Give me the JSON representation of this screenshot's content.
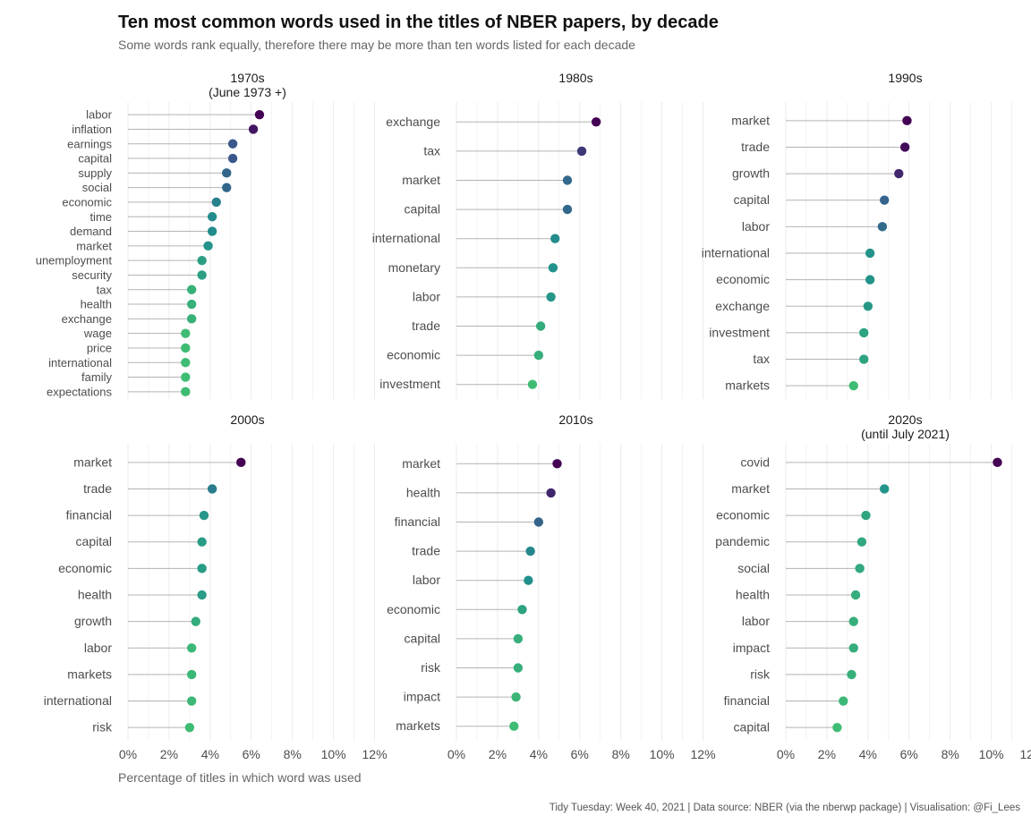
{
  "header": {
    "title": "Ten most common words used in the titles of NBER papers, by decade",
    "subtitle": "Some words rank equally, therefore there may be more than ten words listed for each decade"
  },
  "footer": {
    "xlabel": "Percentage of titles in which word was used",
    "caption": "Tidy Tuesday: Week 40, 2021 | Data source: NBER (via the nberwp package) | Visualisation: @Fi_Lees"
  },
  "colors": {
    "palette_high_to_low": [
      "#440154",
      "#3b528b",
      "#21908c",
      "#3fbc73"
    ],
    "segment": "#b3b3b3",
    "grid": "#ebebeb",
    "text": "#4d4d4d"
  },
  "chart_data": {
    "type": "lollipop",
    "facet_by": "decade",
    "x_axis": {
      "ticks": [
        0,
        2,
        4,
        6,
        8,
        10,
        12
      ],
      "tick_suffix": "%",
      "xlim": [
        0,
        12.5
      ],
      "unit": "percent of titles"
    },
    "grid": true,
    "panels": [
      {
        "decade": "1970s",
        "subtitle": "(June 1973 +)",
        "words": [
          "labor",
          "inflation",
          "earnings",
          "capital",
          "supply",
          "social",
          "economic",
          "time",
          "demand",
          "market",
          "unemployment",
          "security",
          "tax",
          "health",
          "exchange",
          "wage",
          "price",
          "international",
          "family",
          "expectations"
        ],
        "values": [
          6.4,
          6.1,
          5.1,
          5.1,
          4.8,
          4.8,
          4.3,
          4.1,
          4.1,
          3.9,
          3.6,
          3.6,
          3.1,
          3.1,
          3.1,
          2.8,
          2.8,
          2.8,
          2.8,
          2.8
        ]
      },
      {
        "decade": "1980s",
        "subtitle": "",
        "words": [
          "exchange",
          "tax",
          "market",
          "capital",
          "international",
          "monetary",
          "labor",
          "trade",
          "economic",
          "investment"
        ],
        "values": [
          6.8,
          6.1,
          5.4,
          5.4,
          4.8,
          4.7,
          4.6,
          4.1,
          4.0,
          3.7
        ]
      },
      {
        "decade": "1990s",
        "subtitle": "",
        "words": [
          "market",
          "trade",
          "growth",
          "capital",
          "labor",
          "international",
          "economic",
          "exchange",
          "investment",
          "tax",
          "markets"
        ],
        "values": [
          5.9,
          5.8,
          5.5,
          4.8,
          4.7,
          4.1,
          4.1,
          4.0,
          3.8,
          3.8,
          3.3
        ]
      },
      {
        "decade": "2000s",
        "subtitle": "",
        "words": [
          "market",
          "trade",
          "financial",
          "capital",
          "economic",
          "health",
          "growth",
          "labor",
          "markets",
          "international",
          "risk"
        ],
        "values": [
          5.5,
          4.1,
          3.7,
          3.6,
          3.6,
          3.6,
          3.3,
          3.1,
          3.1,
          3.1,
          3.0
        ]
      },
      {
        "decade": "2010s",
        "subtitle": "",
        "words": [
          "market",
          "health",
          "financial",
          "trade",
          "labor",
          "economic",
          "capital",
          "risk",
          "impact",
          "markets"
        ],
        "values": [
          4.9,
          4.6,
          4.0,
          3.6,
          3.5,
          3.2,
          3.0,
          3.0,
          2.9,
          2.8
        ]
      },
      {
        "decade": "2020s",
        "subtitle": "(until July 2021)",
        "words": [
          "covid",
          "market",
          "economic",
          "pandemic",
          "social",
          "health",
          "labor",
          "impact",
          "risk",
          "financial",
          "capital"
        ],
        "values": [
          10.3,
          4.8,
          3.9,
          3.7,
          3.6,
          3.4,
          3.3,
          3.3,
          3.2,
          2.8,
          2.5
        ]
      }
    ]
  }
}
